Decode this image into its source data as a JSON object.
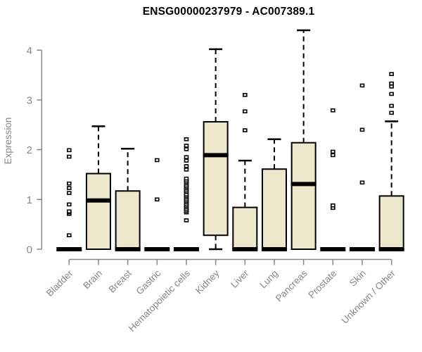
{
  "chart_data": {
    "type": "box",
    "title": "ENSG00000237979 - AC007389.1",
    "ylabel": "Expression",
    "xlabel": "",
    "ylim": [
      0,
      4
    ],
    "yticks": [
      0,
      1,
      2,
      3,
      4
    ],
    "grid": false,
    "legend": "none",
    "colors": {
      "box_fill": "#EDE8CC",
      "box_border": "#000000",
      "median": "#000000",
      "whisker": "#000000",
      "outlier": "#000000",
      "axis": "#878787",
      "tick_label": "#878787",
      "title": "#000000"
    },
    "categories": [
      "Bladder",
      "Brain",
      "Breast",
      "Gastric",
      "Hematopoietic cells",
      "Kidney",
      "Liver",
      "Lung",
      "Pancreas",
      "Prostate",
      "Skin",
      "Unknown / Other"
    ],
    "boxes": [
      {
        "category": "Bladder",
        "q1": 0,
        "median": 0,
        "q3": 0,
        "whisker_low": 0,
        "whisker_high": 0,
        "outliers": [
          0.28,
          0.71,
          0.74,
          0.76,
          0.9,
          1.13,
          1.23,
          1.32,
          1.86,
          1.99
        ]
      },
      {
        "category": "Brain",
        "q1": 0,
        "median": 0.98,
        "q3": 1.52,
        "whisker_low": 0,
        "whisker_high": 2.47,
        "outliers": []
      },
      {
        "category": "Breast",
        "q1": 0,
        "median": 0,
        "q3": 1.17,
        "whisker_low": 0,
        "whisker_high": 2.02,
        "outliers": []
      },
      {
        "category": "Gastric",
        "q1": 0,
        "median": 0,
        "q3": 0,
        "whisker_low": 0,
        "whisker_high": 0,
        "outliers": [
          1.0,
          1.79
        ]
      },
      {
        "category": "Hematopoietic cells",
        "q1": 0,
        "median": 0,
        "q3": 0,
        "whisker_low": 0,
        "whisker_high": 0,
        "outliers": [
          0.58,
          0.74,
          0.77,
          0.8,
          0.84,
          0.87,
          0.9,
          0.94,
          0.97,
          1.0,
          1.04,
          1.07,
          1.1,
          1.15,
          1.18,
          1.22,
          1.25,
          1.28,
          1.32,
          1.35,
          1.38,
          1.42,
          1.6,
          1.67,
          1.78,
          1.85,
          2.01,
          2.08,
          2.21
        ]
      },
      {
        "category": "Kidney",
        "q1": 0.28,
        "median": 1.89,
        "q3": 2.56,
        "whisker_low": 0,
        "whisker_high": 4.02,
        "outliers": []
      },
      {
        "category": "Liver",
        "q1": 0,
        "median": 0,
        "q3": 0.84,
        "whisker_low": 0,
        "whisker_high": 1.78,
        "outliers": [
          2.39,
          2.77,
          3.1
        ]
      },
      {
        "category": "Lung",
        "q1": 0,
        "median": 0,
        "q3": 1.61,
        "whisker_low": 0,
        "whisker_high": 2.21,
        "outliers": []
      },
      {
        "category": "Pancreas",
        "q1": 0,
        "median": 1.31,
        "q3": 2.14,
        "whisker_low": 0,
        "whisker_high": 4.4,
        "outliers": []
      },
      {
        "category": "Prostate",
        "q1": 0,
        "median": 0,
        "q3": 0,
        "whisker_low": 0,
        "whisker_high": 0,
        "outliers": [
          0.83,
          0.88,
          1.89,
          1.96,
          2.79
        ]
      },
      {
        "category": "Skin",
        "q1": 0,
        "median": 0,
        "q3": 0,
        "whisker_low": 0,
        "whisker_high": 0,
        "outliers": [
          1.34,
          2.4,
          3.29
        ]
      },
      {
        "category": "Unknown / Other",
        "q1": 0,
        "median": 0,
        "q3": 1.07,
        "whisker_low": 0,
        "whisker_high": 2.57,
        "outliers": [
          2.74,
          2.88,
          3.12,
          3.27,
          3.33,
          3.52
        ]
      }
    ]
  }
}
